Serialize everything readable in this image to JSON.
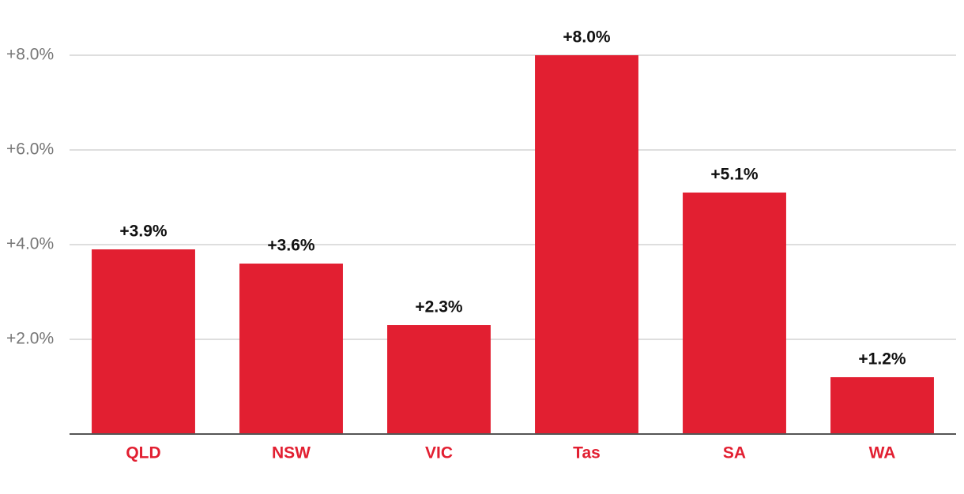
{
  "chart_data": {
    "type": "bar",
    "categories": [
      "QLD",
      "NSW",
      "VIC",
      "Tas",
      "SA",
      "WA"
    ],
    "values": [
      3.9,
      3.6,
      2.3,
      8.0,
      5.1,
      1.2
    ],
    "value_labels": [
      "+3.9%",
      "+3.6%",
      "+2.3%",
      "+8.0%",
      "+5.1%",
      "+1.2%"
    ],
    "color": "#e21f31",
    "ylim": [
      0,
      8
    ],
    "yticks": [
      {
        "value": 2,
        "label": "+2.0%"
      },
      {
        "value": 4,
        "label": "+4.0%"
      },
      {
        "value": 6,
        "label": "+6.0%"
      },
      {
        "value": 8,
        "label": "+8.0%"
      }
    ],
    "grid": true
  }
}
